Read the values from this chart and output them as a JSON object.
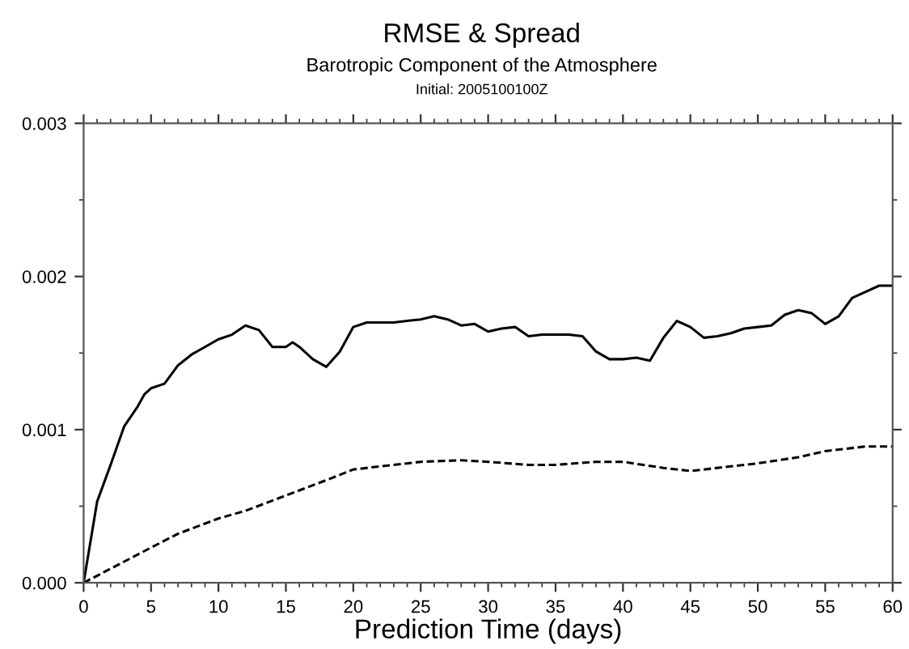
{
  "chart_data": {
    "type": "line",
    "title": "RMSE & Spread",
    "subtitle": "Barotropic Component of the Atmosphere",
    "annotations": [
      "Initial: 2005100100Z"
    ],
    "xlabel": "Prediction Time (days)",
    "xlim": [
      0,
      60
    ],
    "xticks": [
      0,
      5,
      10,
      15,
      20,
      25,
      30,
      35,
      40,
      45,
      50,
      55,
      60
    ],
    "ylim": [
      0,
      0.003
    ],
    "yticks": [
      {
        "value": 0,
        "label": "0.000"
      },
      {
        "value": 0.001,
        "label": "0.001"
      },
      {
        "value": 0.002,
        "label": "0.002"
      },
      {
        "value": 0.003,
        "label": "0.003"
      }
    ],
    "grid": false,
    "marker": "none",
    "series": [
      {
        "color": "#000000",
        "line_style": "solid",
        "x": [
          0,
          1,
          2,
          3,
          4,
          4.5,
          5,
          6,
          7,
          8,
          9,
          10,
          11,
          12,
          13,
          14,
          15,
          15.5,
          16,
          17,
          18,
          19,
          20,
          21,
          22,
          23,
          24,
          25,
          26,
          27,
          28,
          29,
          30,
          31,
          32,
          33,
          34,
          35,
          36,
          37,
          38,
          39,
          40,
          41,
          42,
          43,
          44,
          45,
          46,
          47,
          48,
          49,
          50,
          51,
          52,
          53,
          54,
          55,
          56,
          57,
          58,
          59,
          60
        ],
        "values": [
          0,
          0.00053,
          0.00077,
          0.00102,
          0.00115,
          0.00123,
          0.00127,
          0.0013,
          0.00142,
          0.00149,
          0.00154,
          0.00159,
          0.00162,
          0.00168,
          0.00165,
          0.00154,
          0.00154,
          0.00157,
          0.00154,
          0.00146,
          0.00141,
          0.00151,
          0.00167,
          0.0017,
          0.0017,
          0.0017,
          0.00171,
          0.00172,
          0.00174,
          0.00172,
          0.00168,
          0.00169,
          0.00164,
          0.00166,
          0.00167,
          0.00161,
          0.00162,
          0.00162,
          0.00162,
          0.00161,
          0.00151,
          0.00146,
          0.00146,
          0.00147,
          0.00145,
          0.0016,
          0.00171,
          0.00167,
          0.0016,
          0.00161,
          0.00163,
          0.00166,
          0.00167,
          0.00168,
          0.00175,
          0.00178,
          0.00176,
          0.00169,
          0.00174,
          0.00186,
          0.0019,
          0.00194,
          0.00194
        ]
      },
      {
        "color": "#000000",
        "line_style": "dashed",
        "x": [
          0,
          5,
          7,
          10,
          12,
          15,
          18,
          20,
          25,
          28,
          30,
          33,
          35,
          38,
          40,
          43,
          45,
          48,
          50,
          53,
          55,
          58,
          60
        ],
        "values": [
          0,
          0.00023,
          0.00032,
          0.00042,
          0.00047,
          0.00057,
          0.00067,
          0.00074,
          0.00079,
          0.0008,
          0.00079,
          0.00077,
          0.00077,
          0.00079,
          0.00079,
          0.00075,
          0.00073,
          0.00076,
          0.00078,
          0.00082,
          0.00086,
          0.00089,
          0.00089
        ]
      }
    ]
  }
}
